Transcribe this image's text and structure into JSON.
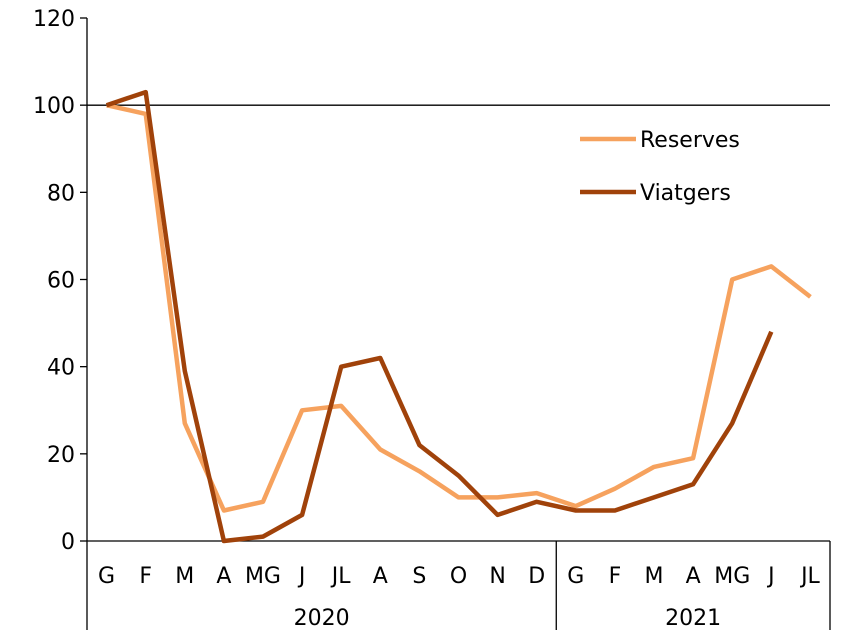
{
  "chart_data": {
    "type": "line",
    "x_categories": [
      "G",
      "F",
      "M",
      "A",
      "MG",
      "J",
      "JL",
      "A",
      "S",
      "O",
      "N",
      "D",
      "G",
      "F",
      "M",
      "A",
      "MG",
      "J",
      "JL"
    ],
    "year_groups": [
      {
        "label": "2020",
        "start_index": 0,
        "end_index": 11
      },
      {
        "label": "2021",
        "start_index": 12,
        "end_index": 18
      }
    ],
    "y_ticks": [
      0,
      20,
      40,
      60,
      80,
      100,
      120
    ],
    "ylim": [
      0,
      120
    ],
    "reference_line": 100,
    "legend_position": "upper-right",
    "series": [
      {
        "name": "Reserves",
        "color": "#F6A25E",
        "values": [
          100,
          98,
          27,
          7,
          9,
          30,
          31,
          21,
          16,
          10,
          10,
          11,
          8,
          12,
          17,
          19,
          60,
          63,
          56
        ]
      },
      {
        "name": "Viatgers",
        "color": "#A0420A",
        "values": [
          100,
          103,
          39,
          0,
          1,
          6,
          40,
          42,
          22,
          15,
          6,
          9,
          7,
          7,
          10,
          13,
          27,
          48,
          null
        ]
      }
    ]
  }
}
